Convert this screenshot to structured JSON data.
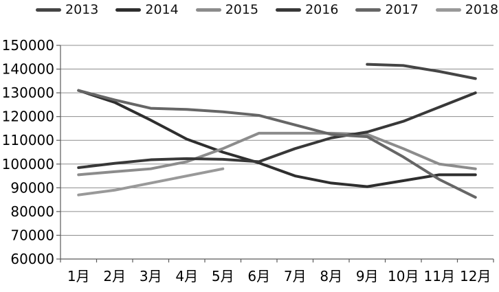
{
  "chart_data": {
    "type": "line",
    "title": "",
    "xlabel": "",
    "ylabel": "",
    "grid": true,
    "legend_position": "top",
    "ylim": [
      60000,
      150000
    ],
    "ytick_step": 10000,
    "y_tick_labels": [
      "150000",
      "140000",
      "130000",
      "120000",
      "110000",
      "100000",
      "90000",
      "80000",
      "70000",
      "60000"
    ],
    "categories": [
      "1月",
      "2月",
      "3月",
      "4月",
      "5月",
      "6月",
      "7月",
      "8月",
      "9月",
      "10月",
      "11月",
      "12月"
    ],
    "series": [
      {
        "name": "2013",
        "color": "#454545",
        "values": [
          null,
          null,
          null,
          null,
          null,
          null,
          null,
          null,
          142000,
          141500,
          139000,
          136000
        ]
      },
      {
        "name": "2014",
        "color": "#2e2e2e",
        "values": [
          131000,
          126000,
          118500,
          110500,
          105000,
          100500,
          95000,
          92000,
          90500,
          93000,
          95500,
          95500
        ]
      },
      {
        "name": "2015",
        "color": "#8c8c8c",
        "values": [
          95500,
          96800,
          98000,
          101000,
          106500,
          113000,
          113000,
          113000,
          112500,
          106500,
          100000,
          98000
        ]
      },
      {
        "name": "2016",
        "color": "#383838",
        "values": [
          98500,
          100300,
          101800,
          102300,
          102000,
          101000,
          106500,
          111000,
          113500,
          118000,
          124000,
          130000
        ]
      },
      {
        "name": "2017",
        "color": "#666666",
        "values": [
          131000,
          127000,
          123500,
          123000,
          122000,
          120500,
          116500,
          112500,
          111500,
          103000,
          93500,
          86000
        ]
      },
      {
        "name": "2018",
        "color": "#999999",
        "values": [
          87000,
          89000,
          92000,
          95000,
          98000,
          null,
          null,
          null,
          null,
          null,
          null,
          null
        ]
      }
    ],
    "colors": {
      "gridline": "#8c8c8c",
      "axis": "#595959",
      "label_text": "#000000"
    }
  }
}
